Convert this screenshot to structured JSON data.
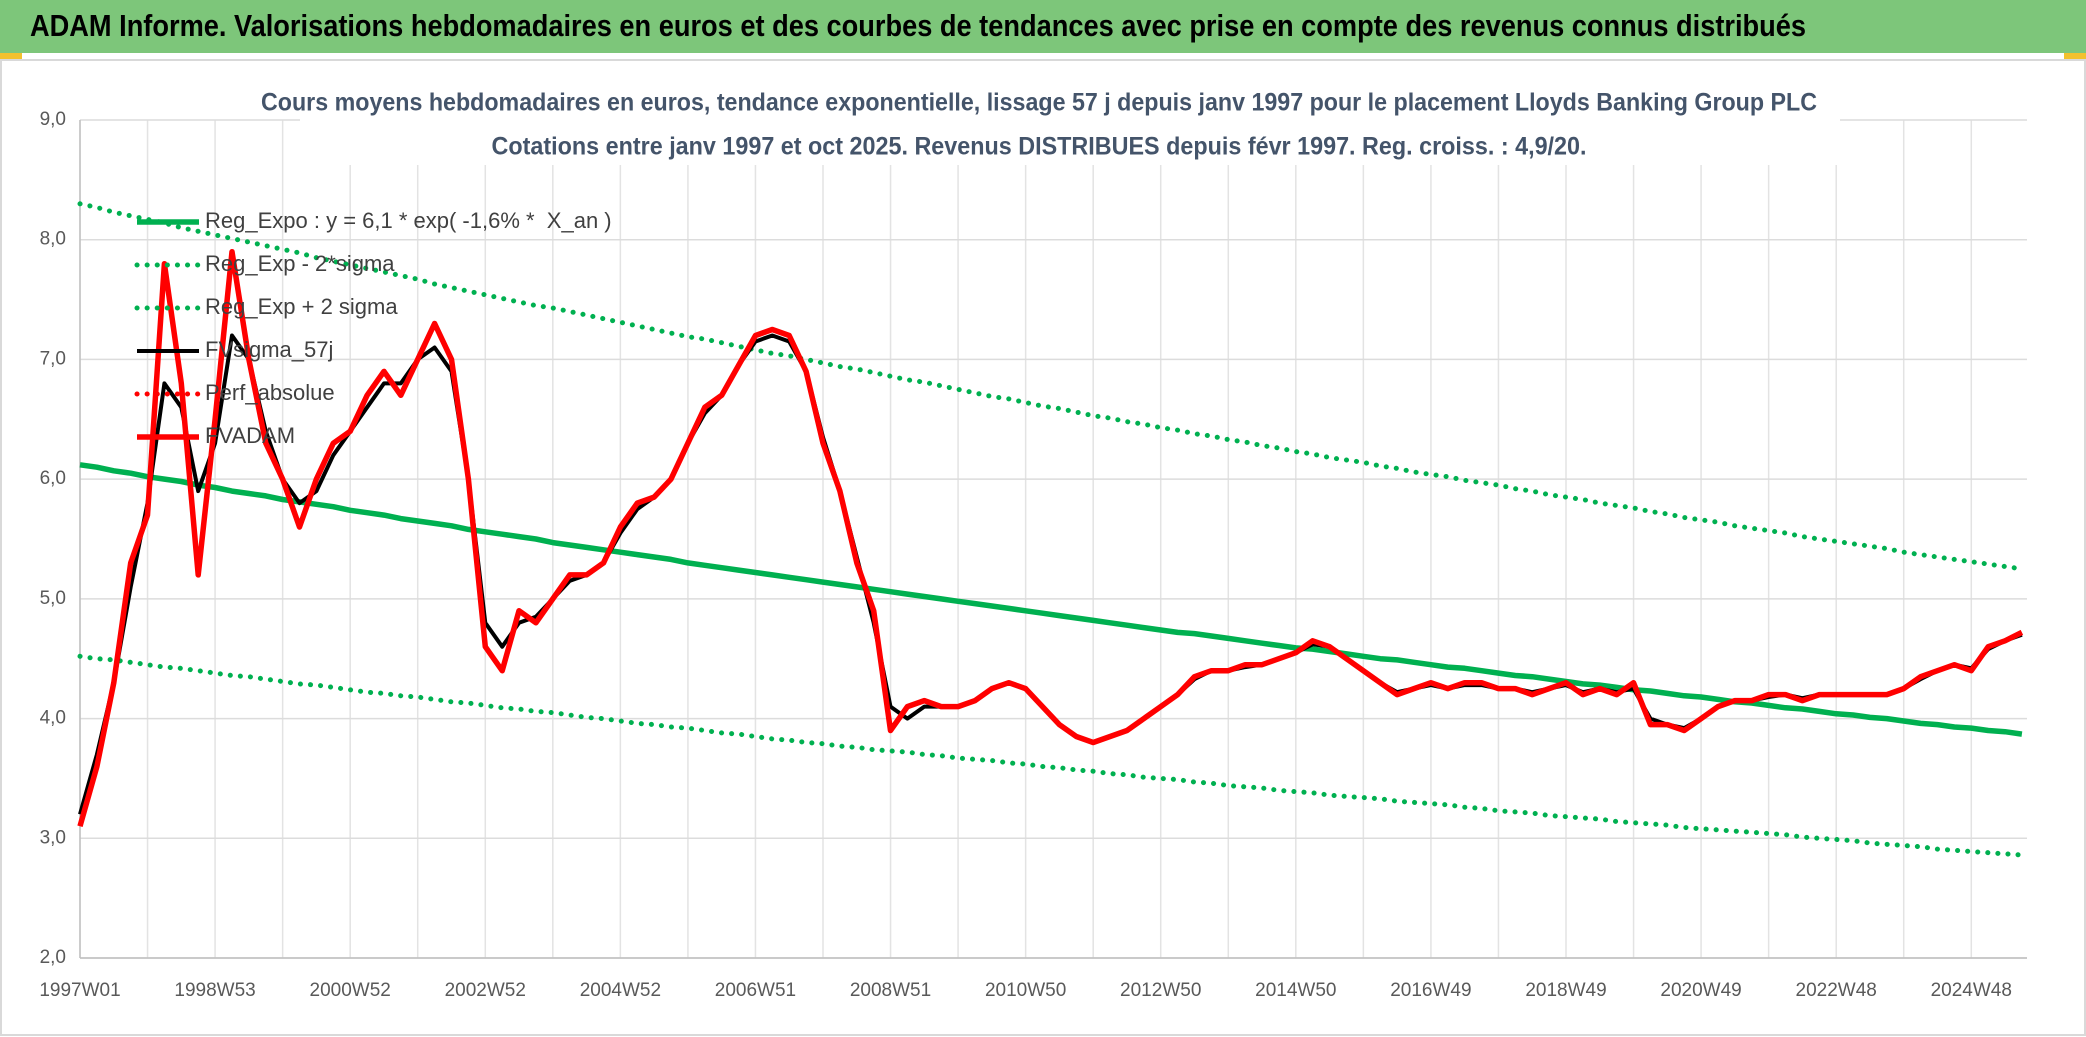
{
  "header": {
    "title": "ADAM Informe. Valorisations hebdomadaires en euros et des courbes de tendances avec prise en compte des revenus connus distribués"
  },
  "chart_data": {
    "type": "line",
    "title": "Cours moyens hebdomadaires en euros, tendance exponentielle, lissage 57 j depuis janv 1997 pour le placement Lloyds Banking Group PLC",
    "subtitle": "Cotations entre janv 1997 et oct 2025. Revenus DISTRIBUES depuis févr 1997. Reg. croiss. : 4,9/20.",
    "ylim": [
      2,
      9
    ],
    "yticks": [
      {
        "value": 2,
        "label": "2,0"
      },
      {
        "value": 3,
        "label": "3,0"
      },
      {
        "value": 4,
        "label": "4,0"
      },
      {
        "value": 5,
        "label": "5,0"
      },
      {
        "value": 6,
        "label": "6,0"
      },
      {
        "value": 7,
        "label": "7,0"
      },
      {
        "value": 8,
        "label": "8,0"
      },
      {
        "value": 9,
        "label": "9,0"
      }
    ],
    "grid": true,
    "legend": "upper left",
    "categories": [
      "1997W01",
      null,
      null,
      null,
      null,
      null,
      null,
      null,
      "1998W53",
      null,
      null,
      null,
      null,
      null,
      null,
      null,
      "2000W52",
      null,
      null,
      null,
      null,
      null,
      null,
      null,
      "2002W52",
      null,
      null,
      null,
      null,
      null,
      null,
      null,
      "2004W52",
      null,
      null,
      null,
      null,
      null,
      null,
      null,
      "2006W51",
      null,
      null,
      null,
      null,
      null,
      null,
      null,
      "2008W51",
      null,
      null,
      null,
      null,
      null,
      null,
      null,
      "2010W50",
      null,
      null,
      null,
      null,
      null,
      null,
      null,
      "2012W50",
      null,
      null,
      null,
      null,
      null,
      null,
      null,
      "2014W50",
      null,
      null,
      null,
      null,
      null,
      null,
      null,
      "2016W49",
      null,
      null,
      null,
      null,
      null,
      null,
      null,
      "2018W49",
      null,
      null,
      null,
      null,
      null,
      null,
      null,
      "2020W49",
      null,
      null,
      null,
      null,
      null,
      null,
      null,
      "2022W48",
      null,
      null,
      null,
      null,
      null,
      null,
      null,
      "2024W48",
      null,
      null,
      null
    ],
    "series": [
      {
        "name": "Reg_Expo : y = 6,1 * exp( -1,6% *  X_an )",
        "color": "#00b050",
        "line_style": "solid",
        "values": [
          6.12,
          6.1,
          6.07,
          6.05,
          6.02,
          6.0,
          5.98,
          5.95,
          5.93,
          5.9,
          5.88,
          5.86,
          5.83,
          5.81,
          5.79,
          5.77,
          5.74,
          5.72,
          5.7,
          5.67,
          5.65,
          5.63,
          5.61,
          5.58,
          5.56,
          5.54,
          5.52,
          5.5,
          5.47,
          5.45,
          5.43,
          5.41,
          5.39,
          5.37,
          5.35,
          5.33,
          5.3,
          5.28,
          5.26,
          5.24,
          5.22,
          5.2,
          5.18,
          5.16,
          5.14,
          5.12,
          5.1,
          5.08,
          5.06,
          5.04,
          5.02,
          5.0,
          4.98,
          4.96,
          4.94,
          4.92,
          4.9,
          4.88,
          4.86,
          4.84,
          4.82,
          4.8,
          4.78,
          4.76,
          4.74,
          4.72,
          4.71,
          4.69,
          4.67,
          4.65,
          4.63,
          4.61,
          4.59,
          4.58,
          4.56,
          4.54,
          4.52,
          4.5,
          4.49,
          4.47,
          4.45,
          4.43,
          4.42,
          4.4,
          4.38,
          4.36,
          4.35,
          4.33,
          4.31,
          4.29,
          4.28,
          4.26,
          4.24,
          4.23,
          4.21,
          4.19,
          4.18,
          4.16,
          4.14,
          4.13,
          4.11,
          4.09,
          4.08,
          4.06,
          4.04,
          4.03,
          4.01,
          4.0,
          3.98,
          3.96,
          3.95,
          3.93,
          3.92,
          3.9,
          3.89,
          3.87
        ]
      },
      {
        "name": "Reg_Exp - 2*sigma",
        "color": "#00b050",
        "line_style": "dotted",
        "values": [
          4.52,
          4.5,
          4.49,
          4.47,
          4.45,
          4.43,
          4.42,
          4.4,
          4.38,
          4.36,
          4.35,
          4.33,
          4.31,
          4.29,
          4.28,
          4.26,
          4.24,
          4.22,
          4.21,
          4.19,
          4.18,
          4.16,
          4.14,
          4.13,
          4.11,
          4.09,
          4.08,
          4.06,
          4.05,
          4.03,
          4.01,
          4.0,
          3.98,
          3.96,
          3.95,
          3.93,
          3.92,
          3.9,
          3.88,
          3.87,
          3.85,
          3.83,
          3.82,
          3.8,
          3.79,
          3.77,
          3.76,
          3.74,
          3.73,
          3.72,
          3.7,
          3.69,
          3.67,
          3.66,
          3.65,
          3.63,
          3.62,
          3.6,
          3.59,
          3.57,
          3.56,
          3.54,
          3.53,
          3.51,
          3.5,
          3.49,
          3.47,
          3.46,
          3.44,
          3.43,
          3.42,
          3.4,
          3.39,
          3.38,
          3.36,
          3.35,
          3.34,
          3.33,
          3.31,
          3.3,
          3.29,
          3.28,
          3.26,
          3.25,
          3.23,
          3.22,
          3.21,
          3.19,
          3.18,
          3.17,
          3.16,
          3.14,
          3.13,
          3.12,
          3.11,
          3.09,
          3.08,
          3.07,
          3.06,
          3.05,
          3.04,
          3.03,
          3.01,
          3.0,
          2.99,
          2.98,
          2.96,
          2.95,
          2.94,
          2.93,
          2.91,
          2.9,
          2.89,
          2.88,
          2.87,
          2.86
        ]
      },
      {
        "name": "Reg_Exp + 2 sigma",
        "color": "#00b050",
        "line_style": "dotted",
        "values": [
          8.3,
          8.27,
          8.23,
          8.2,
          8.17,
          8.14,
          8.1,
          8.07,
          8.04,
          8.01,
          7.98,
          7.95,
          7.92,
          7.89,
          7.85,
          7.82,
          7.79,
          7.76,
          7.73,
          7.7,
          7.67,
          7.63,
          7.6,
          7.57,
          7.54,
          7.51,
          7.48,
          7.45,
          7.43,
          7.4,
          7.37,
          7.34,
          7.31,
          7.28,
          7.25,
          7.22,
          7.19,
          7.17,
          7.14,
          7.11,
          7.08,
          7.05,
          7.03,
          7.0,
          6.97,
          6.94,
          6.92,
          6.89,
          6.86,
          6.83,
          6.81,
          6.78,
          6.75,
          6.72,
          6.69,
          6.67,
          6.64,
          6.61,
          6.59,
          6.56,
          6.53,
          6.51,
          6.48,
          6.46,
          6.43,
          6.41,
          6.38,
          6.36,
          6.33,
          6.31,
          6.28,
          6.26,
          6.23,
          6.21,
          6.18,
          6.16,
          6.14,
          6.11,
          6.09,
          6.06,
          6.04,
          6.02,
          5.99,
          5.97,
          5.95,
          5.92,
          5.9,
          5.87,
          5.85,
          5.83,
          5.8,
          5.78,
          5.76,
          5.73,
          5.71,
          5.68,
          5.66,
          5.64,
          5.61,
          5.59,
          5.57,
          5.55,
          5.52,
          5.5,
          5.48,
          5.46,
          5.44,
          5.42,
          5.39,
          5.37,
          5.35,
          5.33,
          5.31,
          5.29,
          5.27,
          5.25
        ]
      },
      {
        "name": "FVsigma_57j",
        "color": "#000000",
        "line_style": "solid",
        "values": [
          3.2,
          3.7,
          4.3,
          5.1,
          5.8,
          6.8,
          6.6,
          5.9,
          6.3,
          7.2,
          7.0,
          6.4,
          6.0,
          5.8,
          5.9,
          6.2,
          6.4,
          6.6,
          6.8,
          6.8,
          7.0,
          7.1,
          6.9,
          6.0,
          4.8,
          4.6,
          4.8,
          4.85,
          5.0,
          5.15,
          5.2,
          5.3,
          5.55,
          5.75,
          5.85,
          6.0,
          6.3,
          6.55,
          6.7,
          6.95,
          7.15,
          7.2,
          7.15,
          6.9,
          6.35,
          5.9,
          5.35,
          4.8,
          4.1,
          4.0,
          4.1,
          4.1,
          4.1,
          4.15,
          4.25,
          4.3,
          4.25,
          4.1,
          3.95,
          3.85,
          3.8,
          3.85,
          3.9,
          4.0,
          4.1,
          4.2,
          4.33,
          4.4,
          4.4,
          4.43,
          4.45,
          4.5,
          4.55,
          4.62,
          4.6,
          4.5,
          4.4,
          4.3,
          4.22,
          4.25,
          4.28,
          4.25,
          4.28,
          4.28,
          4.25,
          4.25,
          4.22,
          4.25,
          4.28,
          4.22,
          4.25,
          4.22,
          4.25,
          4.0,
          3.95,
          3.92,
          4.0,
          4.1,
          4.15,
          4.15,
          4.18,
          4.2,
          4.17,
          4.2,
          4.2,
          4.2,
          4.2,
          4.2,
          4.25,
          4.33,
          4.4,
          4.45,
          4.42,
          4.58,
          4.65,
          4.7
        ]
      },
      {
        "name": "Perf_absolue",
        "color": "#ff0000",
        "line_style": "dotted"
      },
      {
        "name": "FVADAM",
        "color": "#ff0000",
        "line_style": "solid",
        "values": [
          3.1,
          3.6,
          4.3,
          5.3,
          5.7,
          7.8,
          6.8,
          5.2,
          6.5,
          7.9,
          7.0,
          6.3,
          6.0,
          5.6,
          6.0,
          6.3,
          6.4,
          6.7,
          6.9,
          6.7,
          7.0,
          7.3,
          7.0,
          6.0,
          4.6,
          4.4,
          4.9,
          4.8,
          5.0,
          5.2,
          5.2,
          5.3,
          5.6,
          5.8,
          5.85,
          6.0,
          6.3,
          6.6,
          6.7,
          6.95,
          7.2,
          7.25,
          7.2,
          6.9,
          6.3,
          5.9,
          5.3,
          4.9,
          3.9,
          4.1,
          4.15,
          4.1,
          4.1,
          4.15,
          4.25,
          4.3,
          4.25,
          4.1,
          3.95,
          3.85,
          3.8,
          3.85,
          3.9,
          4.0,
          4.1,
          4.2,
          4.35,
          4.4,
          4.4,
          4.45,
          4.45,
          4.5,
          4.55,
          4.65,
          4.6,
          4.5,
          4.4,
          4.3,
          4.2,
          4.25,
          4.3,
          4.25,
          4.3,
          4.3,
          4.25,
          4.25,
          4.2,
          4.25,
          4.3,
          4.2,
          4.25,
          4.2,
          4.3,
          3.95,
          3.95,
          3.9,
          4.0,
          4.1,
          4.15,
          4.15,
          4.2,
          4.2,
          4.15,
          4.2,
          4.2,
          4.2,
          4.2,
          4.2,
          4.25,
          4.35,
          4.4,
          4.45,
          4.4,
          4.6,
          4.65,
          4.72
        ]
      }
    ]
  }
}
